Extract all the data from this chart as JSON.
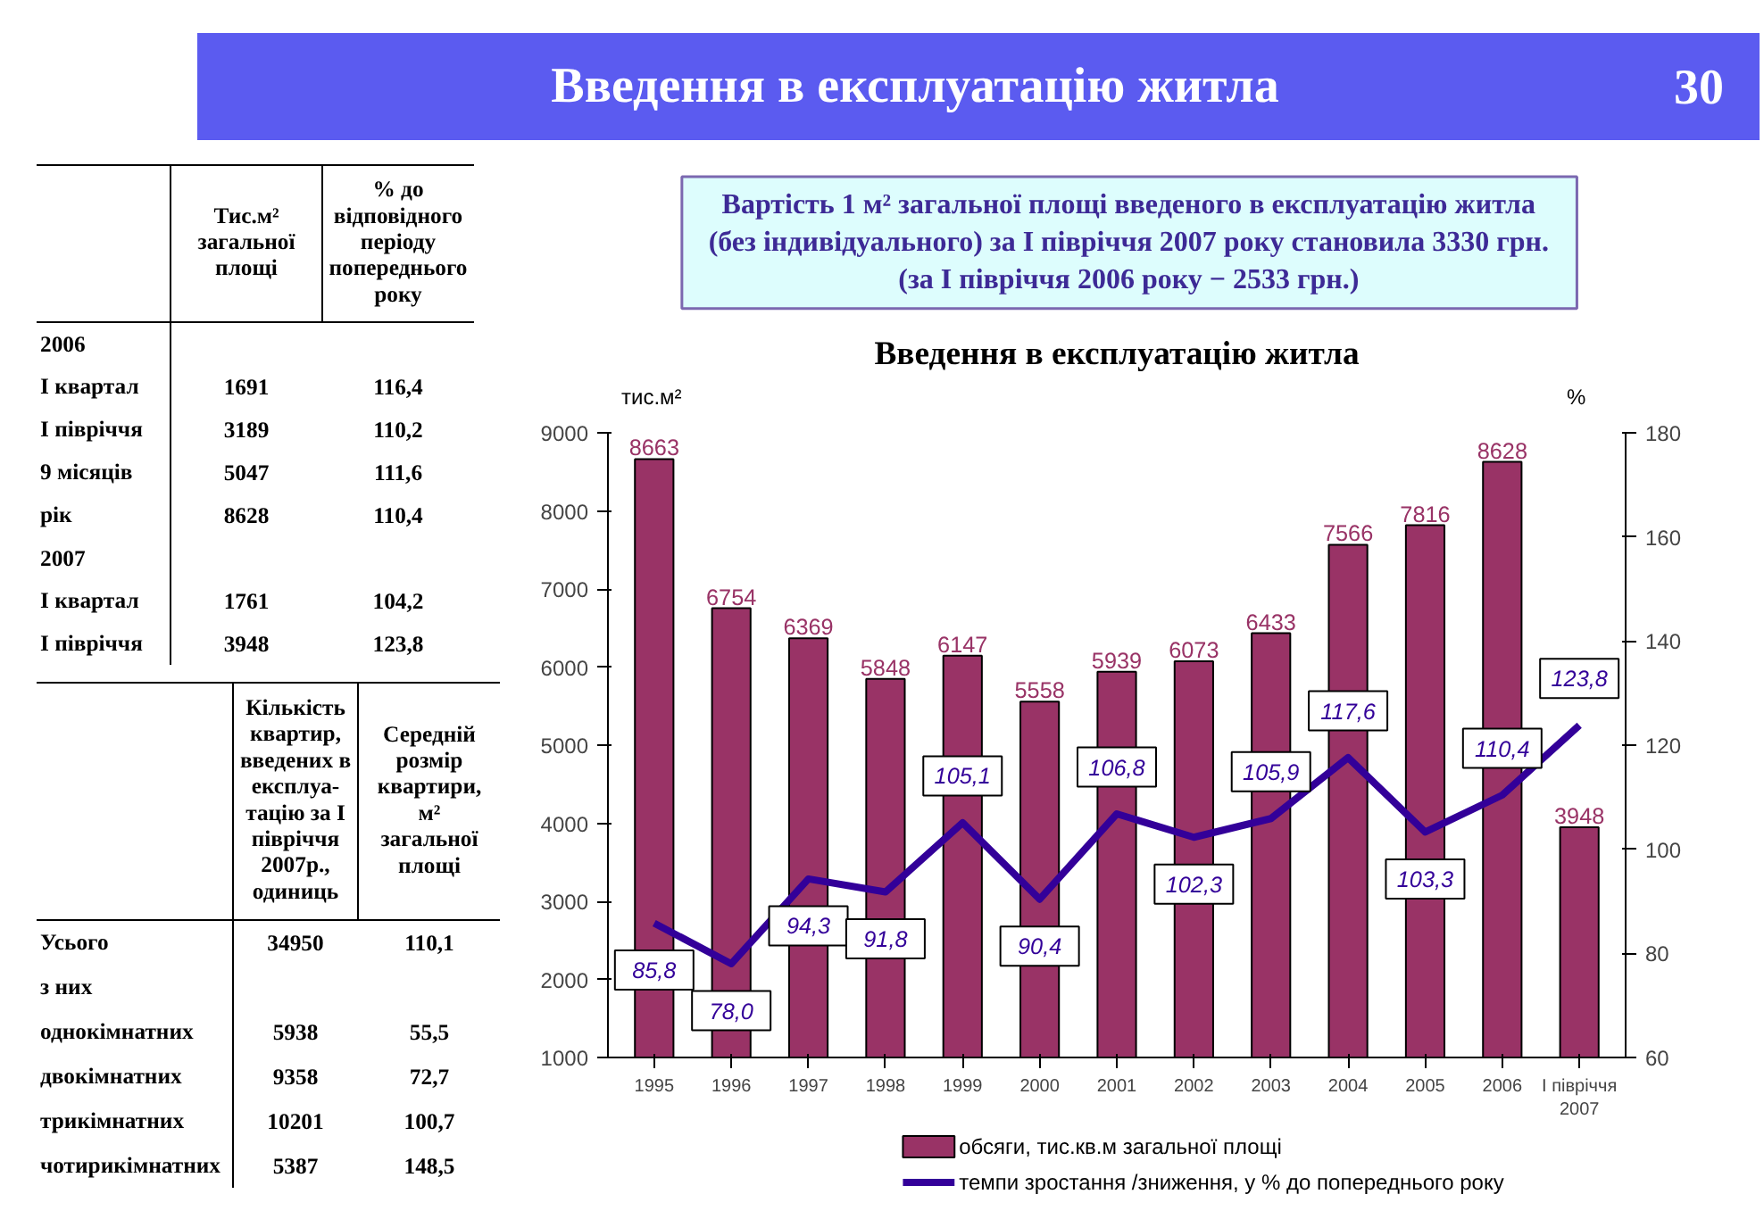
{
  "chart_data": [
    {
      "type": "other",
      "title": "Введення в експлуатацію житла",
      "annotations": [
        "30",
        "Вартість 1 м² загальної площі введеного в експлуатацію житла",
        "(без індивідуального) за І півріччя 2007 року становила 3330 грн.",
        "(за І півріччя 2006 року − 2533 грн.)"
      ]
    },
    {
      "type": "heatmap",
      "categories": [
        "Тис.м² загальної площі",
        "% до відповідного періоду попереднього року"
      ],
      "y_categories": [
        "2006",
        "І квартал",
        "І півріччя",
        "9 місяців",
        "рік",
        "2007",
        "І квартал",
        "І півріччя"
      ],
      "cells": [
        [
          null,
          null
        ],
        [
          1691,
          116.4
        ],
        [
          3189,
          110.2
        ],
        [
          5047,
          111.6
        ],
        [
          8628,
          110.4
        ],
        [
          null,
          null
        ],
        [
          1761,
          104.2
        ],
        [
          3948,
          123.8
        ]
      ],
      "cell_labels": [
        [
          null,
          null
        ],
        [
          "1691",
          "116,4"
        ],
        [
          "3189",
          "110,2"
        ],
        [
          "5047",
          "111,6"
        ],
        [
          "8628",
          "110,4"
        ],
        [
          null,
          null
        ],
        [
          "1761",
          "104,2"
        ],
        [
          "3948",
          "123,8"
        ]
      ]
    },
    {
      "type": "heatmap",
      "categories": [
        "Кількість квартир, введених в експлуа-тацію за І півріччя 2007р., одиниць",
        "Середній розмір квартири, м² загальної площі"
      ],
      "y_categories": [
        "Усього",
        "з них",
        "однокімнатних",
        "двокімнатних",
        "трикімнатних",
        "чотирикімнатних"
      ],
      "cells": [
        [
          34950,
          110.1
        ],
        [
          null,
          null
        ],
        [
          5938,
          55.5
        ],
        [
          9358,
          72.7
        ],
        [
          10201,
          100.7
        ],
        [
          5387,
          148.5
        ]
      ],
      "cell_labels": [
        [
          "34950",
          "110,1"
        ],
        [
          null,
          null
        ],
        [
          "5938",
          "55,5"
        ],
        [
          "9358",
          "72,7"
        ],
        [
          "10201",
          "100,7"
        ],
        [
          "5387",
          "148,5"
        ]
      ]
    },
    {
      "type": "bar",
      "title": "Введення в експлуатацію житла",
      "ylabel": "тис.м²",
      "y2label": "%",
      "categories": [
        "1995",
        "1996",
        "1997",
        "1998",
        "1999",
        "2000",
        "2001",
        "2002",
        "2003",
        "2004",
        "2005",
        "2006",
        "І півріччя 2007"
      ],
      "ylim": [
        1000,
        9000
      ],
      "yticks": [
        1000,
        2000,
        3000,
        4000,
        5000,
        6000,
        7000,
        8000,
        9000
      ],
      "y2lim": [
        60,
        180
      ],
      "y2ticks": [
        60,
        80,
        100,
        120,
        140,
        160,
        180
      ],
      "grid": false,
      "legend": "bottom",
      "series": [
        {
          "name": "обсяги, тис.кв.м загальної площі",
          "type": "bar",
          "color": "#993366",
          "values": [
            8663,
            6754,
            6369,
            5848,
            6147,
            5558,
            5939,
            6073,
            6433,
            7566,
            7816,
            8628,
            3948
          ],
          "value_labels": [
            "8663",
            "6754",
            "6369",
            "5848",
            "6147",
            "5558",
            "5939",
            "6073",
            "6433",
            "7566",
            "7816",
            "8628",
            "3948"
          ]
        },
        {
          "name": "темпи зростання /зниження, у % до попереднього року",
          "type": "line",
          "axis": "y2",
          "color": "#330099",
          "values": [
            85.8,
            78.0,
            94.3,
            91.8,
            105.1,
            90.4,
            106.8,
            102.3,
            105.9,
            117.6,
            103.3,
            110.4,
            123.8
          ],
          "value_labels": [
            "85,8",
            "78,0",
            "94,3",
            "91,8",
            "105,1",
            "90,4",
            "106,8",
            "102,3",
            "105,9",
            "117,6",
            "103,3",
            "110,4",
            "123,8"
          ]
        }
      ]
    }
  ]
}
